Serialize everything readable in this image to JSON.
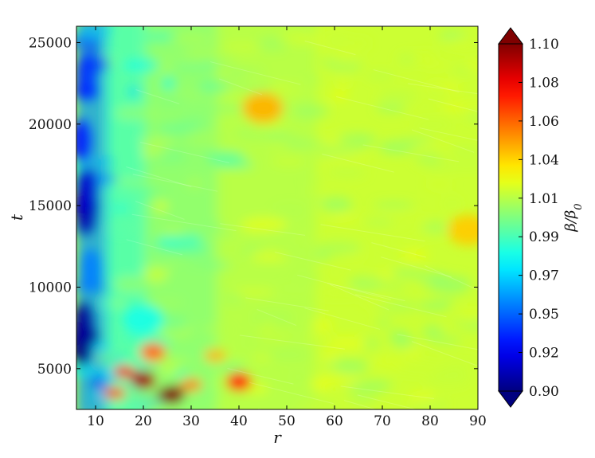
{
  "chart_data": {
    "type": "heatmap",
    "title": "",
    "xlabel": "r",
    "ylabel": "t",
    "x_ticks": [
      10,
      20,
      30,
      40,
      50,
      60,
      70,
      80,
      90
    ],
    "y_ticks": [
      5000,
      10000,
      15000,
      20000,
      25000
    ],
    "x_tick_labels": [
      "10",
      "20",
      "30",
      "40",
      "50",
      "60",
      "70",
      "80",
      "90"
    ],
    "y_tick_labels": [
      "5000",
      "10000",
      "15000",
      "20000",
      "25000"
    ],
    "xlim": [
      6,
      90
    ],
    "ylim": [
      2500,
      26000
    ],
    "grid": false,
    "colorbar": {
      "label": "β/β₀",
      "label_base": "β/β",
      "label_sub": "0",
      "ticks": [
        0.9,
        0.92,
        0.95,
        0.97,
        0.99,
        1.01,
        1.04,
        1.06,
        1.08,
        1.1
      ],
      "tick_labels": [
        "0.90",
        "0.92",
        "0.95",
        "0.97",
        "0.99",
        "1.01",
        "1.04",
        "1.06",
        "1.08",
        "1.10"
      ],
      "range": [
        0.9,
        1.1
      ],
      "extend": "both",
      "colormap": "jet"
    },
    "features": [
      {
        "r": 8,
        "t": 7000,
        "value": 0.9
      },
      {
        "r": 8,
        "t": 15000,
        "value": 0.91
      },
      {
        "r": 8,
        "t": 22000,
        "value": 0.93
      },
      {
        "r": 20,
        "t": 4300,
        "value": 1.09
      },
      {
        "r": 26,
        "t": 3400,
        "value": 1.1
      },
      {
        "r": 22,
        "t": 6000,
        "value": 1.06
      },
      {
        "r": 40,
        "t": 4200,
        "value": 1.07
      },
      {
        "r": 45,
        "t": 21000,
        "value": 1.04
      },
      {
        "r": 88,
        "t": 13500,
        "value": 1.035
      },
      {
        "r": 20,
        "t": 8000,
        "value": 0.98
      }
    ],
    "background_value": 1.015
  }
}
